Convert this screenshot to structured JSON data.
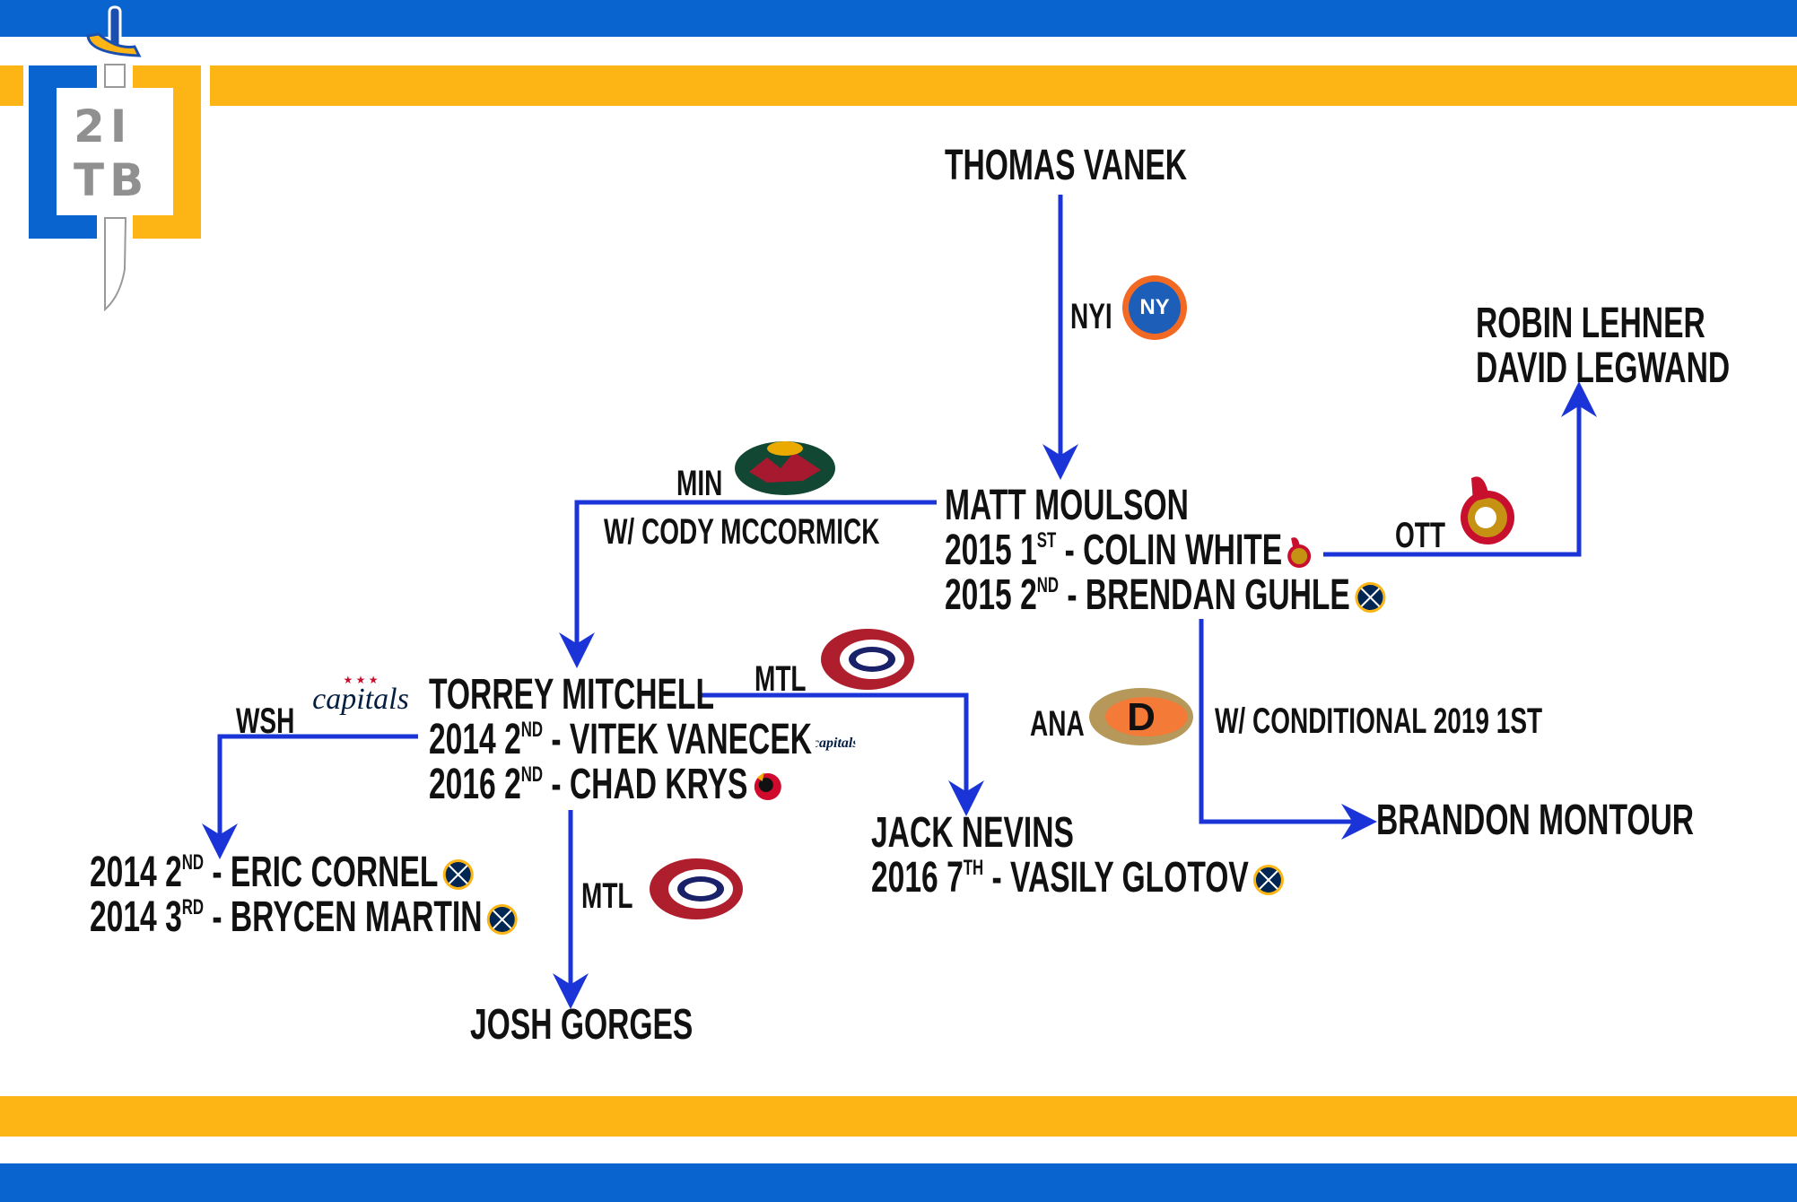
{
  "brand": {
    "logo_text": [
      "2I",
      "TB"
    ],
    "colors": {
      "blue": "#0a64cf",
      "gold": "#fdb515",
      "line": "#1a34d8"
    }
  },
  "nodes": {
    "vanek": "THOMAS VANEK",
    "moulson": {
      "name": "MATT MOULSON",
      "picks": [
        {
          "year": "2015",
          "round": "1",
          "suffix": "ST",
          "player": "COLIN WHITE",
          "icon": "senators-logo"
        },
        {
          "year": "2015",
          "round": "2",
          "suffix": "ND",
          "player": "BRENDAN GUHLE",
          "icon": "sabres-logo"
        }
      ]
    },
    "lehner_legwand": [
      "ROBIN LEHNER",
      "DAVID LEGWAND"
    ],
    "mccormick": "W/ CODY MCCORMICK",
    "conditional": "W/ CONDITIONAL 2019 1ST",
    "montour": "BRANDON MONTOUR",
    "mitchell": {
      "name": "TORREY MITCHELL",
      "picks": [
        {
          "year": "2014",
          "round": "2",
          "suffix": "ND",
          "player": "VITEK VANECEK",
          "icon": "capitals-logo"
        },
        {
          "year": "2016",
          "round": "2",
          "suffix": "ND",
          "player": "CHAD KRYS",
          "icon": "blackhawks-logo"
        }
      ]
    },
    "nevins": {
      "name": "JACK NEVINS",
      "picks": [
        {
          "year": "2016",
          "round": "7",
          "suffix": "TH",
          "player": "VASILY GLOTOV",
          "icon": "sabres-logo"
        }
      ]
    },
    "wsh_picks": [
      {
        "year": "2014",
        "round": "2",
        "suffix": "ND",
        "player": "ERIC CORNEL",
        "icon": "sabres-logo"
      },
      {
        "year": "2014",
        "round": "3",
        "suffix": "RD",
        "player": "BRYCEN MARTIN",
        "icon": "sabres-logo"
      }
    ],
    "gorges": "JOSH GORGES"
  },
  "teams": {
    "nyi": "NYI",
    "ott": "OTT",
    "min": "MIN",
    "ana": "ANA",
    "mtl1": "MTL",
    "mtl2": "MTL",
    "wsh": "WSH"
  }
}
